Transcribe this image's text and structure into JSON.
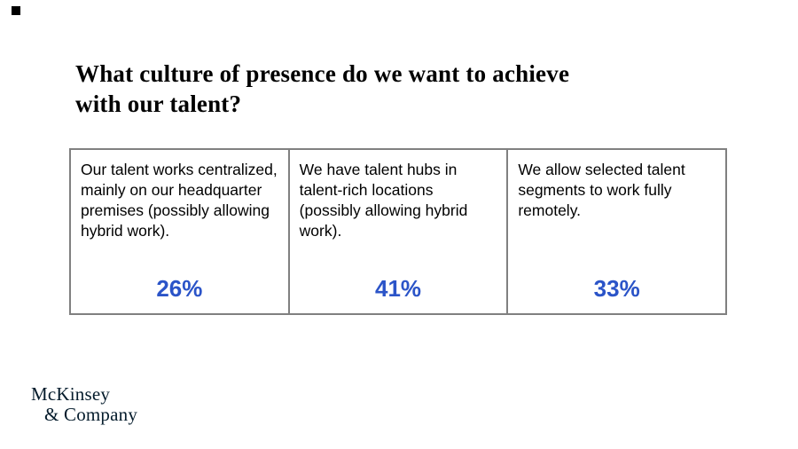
{
  "slide": {
    "title": {
      "line1": "What culture of presence do we want to achieve",
      "line2": "with our talent?"
    },
    "cards": [
      {
        "description": "Our talent works centralized, mainly on our headquarter premises (possibly allowing hybrid work).",
        "value": "26%"
      },
      {
        "description": "We have talent hubs in talent-rich locations (possibly allowing hybrid work).",
        "value": "41%"
      },
      {
        "description": "We allow selected talent segments to work fully remotely.",
        "value": "33%"
      }
    ],
    "logo": {
      "line1": "McKinsey",
      "line2": "& Company"
    },
    "colors": {
      "accent_blue": "#2B54C8",
      "border_gray": "#808080",
      "logo_navy": "#051C2C"
    }
  },
  "chart_data": {
    "type": "table",
    "title": "What culture of presence do we want to achieve with our talent?",
    "categories": [
      "Our talent works centralized, mainly on our headquarter premises (possibly allowing hybrid work).",
      "We have talent hubs in talent-rich locations (possibly allowing hybrid work).",
      "We allow selected talent segments to work fully remotely."
    ],
    "values": [
      26,
      41,
      33
    ],
    "unit": "%"
  }
}
